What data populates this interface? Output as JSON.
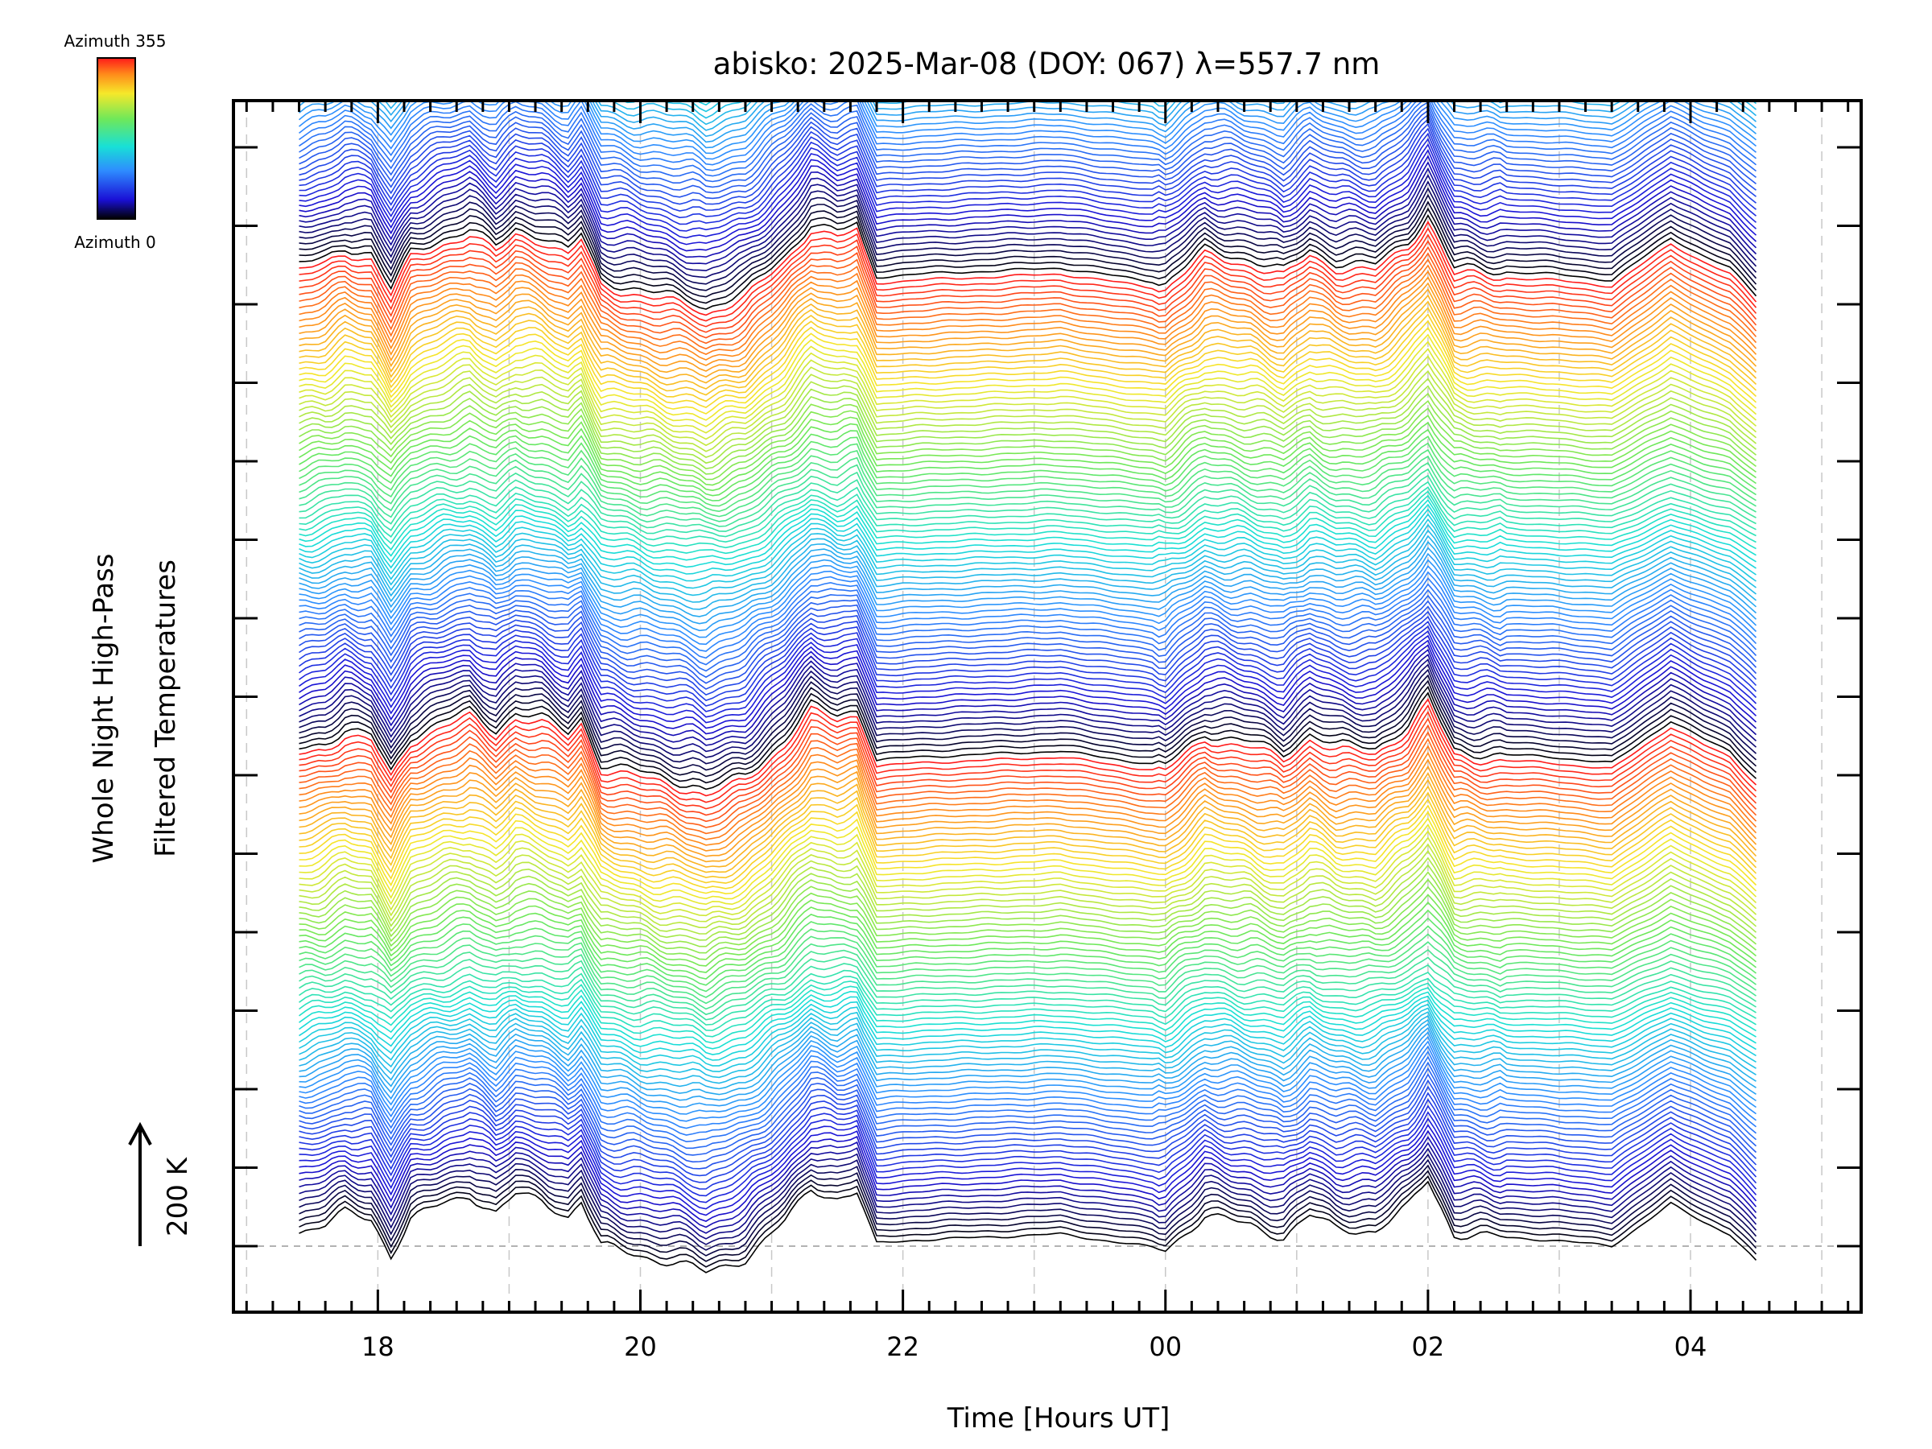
{
  "chart_data": {
    "type": "line",
    "title": "abisko: 2025-Mar-08 (DOY: 067) λ=557.7 nm",
    "xlabel": "Time [Hours UT]",
    "ylabel_line1": "Whole Night High-Pass",
    "ylabel_line2": "Filtered Temperatures",
    "scale_label": "200 K",
    "colorbar": {
      "top_label": "Azimuth 355",
      "bottom_label": "Azimuth 0",
      "colormap": "rainbow"
    },
    "x_ticks": [
      {
        "hour": 18,
        "label": "18"
      },
      {
        "hour": 20,
        "label": "20"
      },
      {
        "hour": 22,
        "label": "22"
      },
      {
        "hour": 24,
        "label": "00"
      },
      {
        "hour": 26,
        "label": "02"
      },
      {
        "hour": 28,
        "label": "04"
      }
    ],
    "xlim": [
      16.9,
      29.3
    ],
    "data_range_hours": [
      17.4,
      28.5
    ],
    "grid": "dashed vertical at each hour",
    "trace_count": 240,
    "azimuth_step_deg": 5,
    "azimuth_sweeps": 3,
    "trace_spacing_k": 10,
    "profile_hours": [
      17.4,
      17.6,
      17.75,
      17.95,
      18.1,
      18.25,
      18.5,
      18.7,
      18.9,
      19.05,
      19.25,
      19.45,
      19.55,
      19.7,
      20.0,
      20.4,
      20.5,
      20.8,
      21.1,
      21.3,
      21.5,
      21.65,
      21.8,
      22.1,
      23.2,
      24.0,
      24.3,
      24.65,
      24.9,
      25.1,
      25.3,
      25.6,
      25.85,
      26.0,
      26.2,
      26.5,
      26.95,
      27.4,
      27.85,
      28.1,
      28.3,
      28.5
    ],
    "profile_values_k": [
      25,
      35,
      55,
      45,
      -15,
      45,
      70,
      85,
      55,
      85,
      75,
      50,
      75,
      0,
      -15,
      -35,
      -45,
      -20,
      40,
      95,
      80,
      90,
      5,
      10,
      20,
      -5,
      50,
      35,
      15,
      50,
      30,
      25,
      65,
      110,
      20,
      15,
      10,
      0,
      70,
      40,
      20,
      -25
    ]
  }
}
